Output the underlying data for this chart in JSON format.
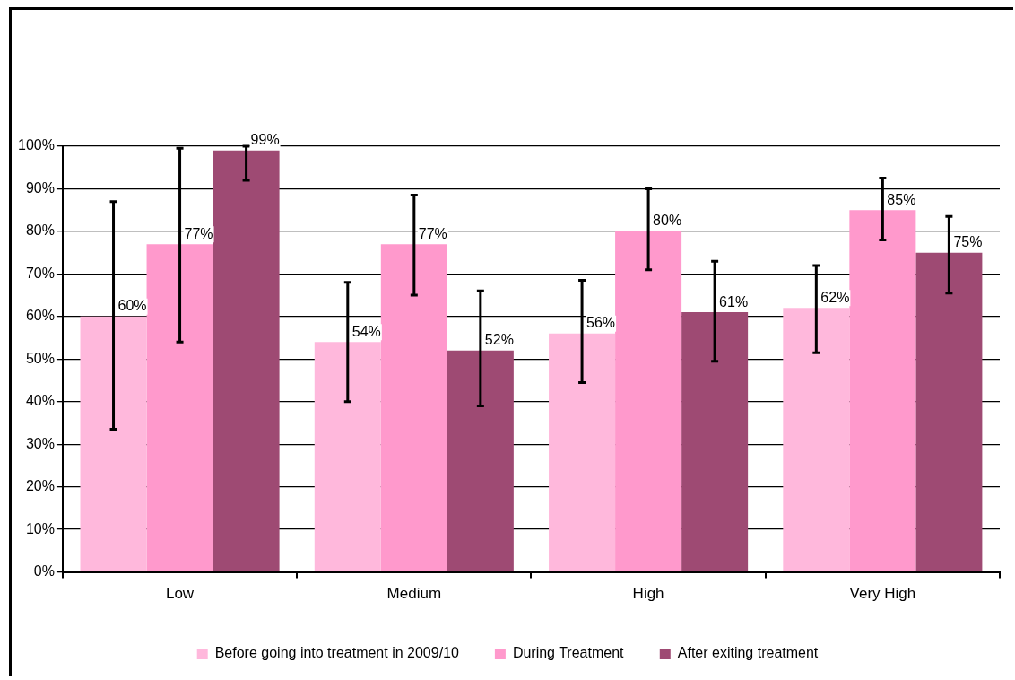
{
  "chart_data": {
    "type": "bar",
    "categories": [
      "Low",
      "Medium",
      "High",
      "Very High"
    ],
    "series": [
      {
        "name": "Before going into treatment in 2009/10",
        "color": "#ffb8dc",
        "values": [
          60,
          54,
          56,
          62
        ],
        "errors": [
          [
            33.5,
            87
          ],
          [
            40,
            68
          ],
          [
            44.5,
            68.5
          ],
          [
            51.5,
            72
          ]
        ],
        "value_labels": [
          "60%",
          "54%",
          "56%",
          "62%"
        ]
      },
      {
        "name": "During Treatment",
        "color": "#ff99cc",
        "values": [
          77,
          77,
          80,
          85
        ],
        "errors": [
          [
            54,
            99.5
          ],
          [
            65,
            88.5
          ],
          [
            71,
            90
          ],
          [
            78,
            92.5
          ]
        ],
        "value_labels": [
          "77%",
          "77%",
          "80%",
          "85%"
        ]
      },
      {
        "name": "After exiting treatment",
        "color": "#9e4a73",
        "values": [
          99,
          52,
          61,
          75
        ],
        "errors": [
          [
            92,
            100
          ],
          [
            39,
            66
          ],
          [
            49.5,
            73
          ],
          [
            65.5,
            83.5
          ]
        ],
        "value_labels": [
          "99%",
          "52%",
          "61%",
          "75%"
        ]
      }
    ],
    "ylim": [
      0,
      100
    ],
    "yticks": [
      {
        "value": 0,
        "label": "0%"
      },
      {
        "value": 10,
        "label": "10%"
      },
      {
        "value": 20,
        "label": "20%"
      },
      {
        "value": 30,
        "label": "30%"
      },
      {
        "value": 40,
        "label": "40%"
      },
      {
        "value": 50,
        "label": "50%"
      },
      {
        "value": 60,
        "label": "60%"
      },
      {
        "value": 70,
        "label": "70%"
      },
      {
        "value": 80,
        "label": "80%"
      },
      {
        "value": 90,
        "label": "90%"
      },
      {
        "value": 100,
        "label": "100%"
      }
    ],
    "grid": "y",
    "legend": "bottom"
  }
}
